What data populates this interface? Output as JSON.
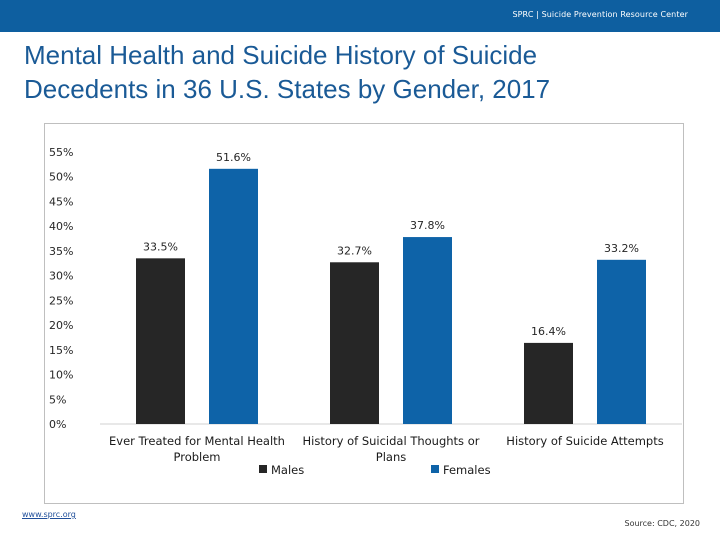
{
  "header": {
    "brand": "SPRC | Suicide Prevention Resource Center",
    "bar_color": "#0e5fa0"
  },
  "slide": {
    "title_line1": "Mental Health and Suicide History of Suicide",
    "title_line2": "Decedents in 36 U.S. States by Gender, 2017",
    "title_color": "#1a5a96"
  },
  "footer": {
    "link": "www.sprc.org",
    "source": "Source: CDC, 2020"
  },
  "chart_data": {
    "type": "bar",
    "title": "",
    "xlabel": "",
    "ylabel": "",
    "categories": [
      [
        "Ever Treated for Mental Health",
        "Problem"
      ],
      [
        "History of Suicidal Thoughts or",
        "Plans"
      ],
      [
        "History of Suicide Attempts"
      ]
    ],
    "series": [
      {
        "name": "Males",
        "values": [
          33.5,
          32.7,
          16.4
        ],
        "labels": [
          "33.5%",
          "32.7%",
          "16.4%"
        ],
        "color": "#262626"
      },
      {
        "name": "Females",
        "values": [
          51.6,
          37.8,
          33.2
        ],
        "labels": [
          "51.6%",
          "37.8%",
          "33.2%"
        ],
        "color": "#0e63a8"
      }
    ],
    "ylim": [
      0,
      55
    ],
    "yticks": [
      0,
      5,
      10,
      15,
      20,
      25,
      30,
      35,
      40,
      45,
      50,
      55
    ],
    "ytick_labels": [
      "0%",
      "5%",
      "10%",
      "15%",
      "20%",
      "25%",
      "30%",
      "35%",
      "40%",
      "45%",
      "50%",
      "55%"
    ],
    "grid": false,
    "legend_position": "bottom"
  }
}
